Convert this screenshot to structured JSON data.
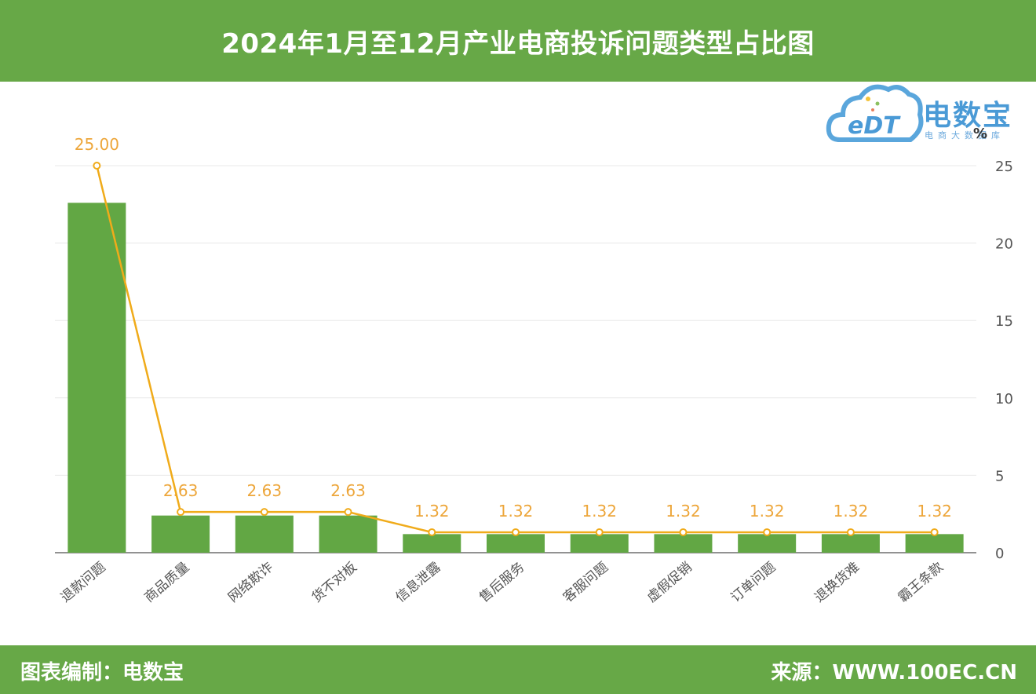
{
  "title": "2024年1月至12月产业电商投诉问题类型占比图",
  "footer": {
    "credit": "图表编制：电数宝",
    "source": "来源：WWW.100EC.CN"
  },
  "watermark": {
    "brand": "电数宝",
    "logo_text": "eDT",
    "tagline": "电商大数据库",
    "unit": "%"
  },
  "colors": {
    "header": "#67a847",
    "bar": "#62a744",
    "line": "#f0ab1a",
    "label": "#eda63a",
    "brand": "#4a9ad6"
  },
  "chart_data": {
    "type": "bar",
    "categories": [
      "退款问题",
      "商品质量",
      "网络欺诈",
      "货不对板",
      "信息泄露",
      "售后服务",
      "客服问题",
      "虚假促销",
      "订单问题",
      "退换货难",
      "霸王条款"
    ],
    "series": [
      {
        "type": "bar",
        "values": [
          22.6,
          2.4,
          2.4,
          2.4,
          1.2,
          1.2,
          1.2,
          1.2,
          1.2,
          1.2,
          1.2
        ]
      },
      {
        "type": "line",
        "values": [
          25.0,
          2.63,
          2.63,
          2.63,
          1.32,
          1.32,
          1.32,
          1.32,
          1.32,
          1.32,
          1.32
        ],
        "labels": [
          "25.00",
          "2.63",
          "2.63",
          "2.63",
          "1.32",
          "1.32",
          "1.32",
          "1.32",
          "1.32",
          "1.32",
          "1.32"
        ]
      }
    ],
    "yaxis": {
      "position": "right",
      "ticks": [
        0,
        5,
        10,
        15,
        20,
        25
      ],
      "ylim": [
        0,
        25
      ]
    },
    "grid": true,
    "legend": "none"
  }
}
